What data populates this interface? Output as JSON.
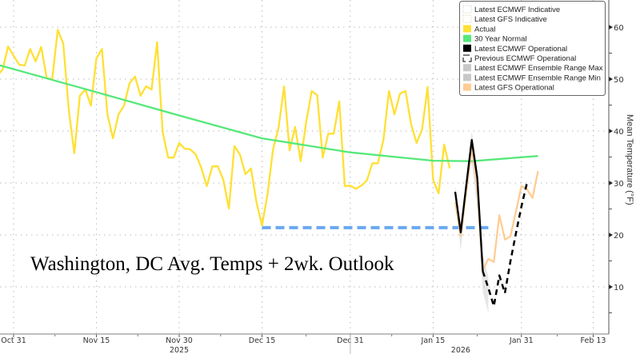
{
  "chart_data": {
    "type": "line",
    "title": "Washington, DC Avg. Temps + 2wk. Outlook",
    "xlabel": "",
    "ylabel": "Mean Temperature (°F)",
    "ylim": [
      1,
      64.5
    ],
    "xlim": [
      "2025-10-28",
      "2026-02-16"
    ],
    "grid": true,
    "legend_position": "top-right",
    "y_ticks": [
      10,
      20,
      30,
      40,
      50,
      60
    ],
    "x_ticks": [
      {
        "date": "2025-10-31",
        "label": "Oct 31"
      },
      {
        "date": "2025-11-15",
        "label": "Nov 15"
      },
      {
        "date": "2025-11-30",
        "label": "Nov 30"
      },
      {
        "date": "2025-12-15",
        "label": "Dec 15"
      },
      {
        "date": "2025-12-31",
        "label": "Dec 31"
      },
      {
        "date": "2026-01-15",
        "label": "Jan 15"
      },
      {
        "date": "2026-01-31",
        "label": "Jan 31"
      },
      {
        "date": "2026-02-13",
        "label": "Feb 13"
      }
    ],
    "year_labels": [
      {
        "date": "2025-11-30",
        "label": "2025"
      },
      {
        "date": "2026-01-20",
        "label": "2026"
      }
    ],
    "legend": [
      {
        "label": "Latest ECMWF Indicative",
        "color": "#ffffff",
        "style": "dotted-box"
      },
      {
        "label": "Latest GFS Indicative",
        "color": "#ffffff",
        "style": "dotted-box-orange"
      },
      {
        "label": "Actual",
        "color": "#ffe033",
        "style": "box"
      },
      {
        "label": "30 Year Normal",
        "color": "#55e87a",
        "style": "box"
      },
      {
        "label": "Latest ECMWF Operational",
        "color": "#000000",
        "style": "box"
      },
      {
        "label": "Previous ECMWF Operational",
        "color": "#000000",
        "style": "dashed"
      },
      {
        "label": "Latest ECMWF Ensemble Range Max",
        "color": "#c8c8c8",
        "style": "box"
      },
      {
        "label": "Latest ECMWF Ensemble Range Min",
        "color": "#c8c8c8",
        "style": "box"
      },
      {
        "label": "Latest GFS Operational",
        "color": "#ffcc94",
        "style": "box"
      }
    ],
    "series": [
      {
        "name": "Actual",
        "color": "#ffe033",
        "dash": "",
        "points": [
          [
            "2025-10-28",
            50.6
          ],
          [
            "2025-10-29",
            51.8
          ],
          [
            "2025-10-30",
            56.3
          ],
          [
            "2025-10-31",
            54.5
          ],
          [
            "2025-11-01",
            52.8
          ],
          [
            "2025-11-02",
            52.6
          ],
          [
            "2025-11-03",
            55.8
          ],
          [
            "2025-11-04",
            53.4
          ],
          [
            "2025-11-05",
            56.2
          ],
          [
            "2025-11-06",
            50.2
          ],
          [
            "2025-11-07",
            50.0
          ],
          [
            "2025-11-08",
            59.5
          ],
          [
            "2025-11-09",
            56.8
          ],
          [
            "2025-11-10",
            44.0
          ],
          [
            "2025-11-11",
            35.7
          ],
          [
            "2025-11-12",
            46.8
          ],
          [
            "2025-11-13",
            48.0
          ],
          [
            "2025-11-14",
            44.9
          ],
          [
            "2025-11-15",
            54.0
          ],
          [
            "2025-11-16",
            55.8
          ],
          [
            "2025-11-17",
            43.2
          ],
          [
            "2025-11-18",
            38.6
          ],
          [
            "2025-11-19",
            43.2
          ],
          [
            "2025-11-20",
            44.9
          ],
          [
            "2025-11-21",
            49.2
          ],
          [
            "2025-11-22",
            50.5
          ],
          [
            "2025-11-23",
            46.8
          ],
          [
            "2025-11-24",
            48.6
          ],
          [
            "2025-11-25",
            48.0
          ],
          [
            "2025-11-26",
            57.1
          ],
          [
            "2025-11-27",
            39.8
          ],
          [
            "2025-11-28",
            34.9
          ],
          [
            "2025-11-29",
            34.9
          ],
          [
            "2025-11-30",
            37.7
          ],
          [
            "2025-12-01",
            36.6
          ],
          [
            "2025-12-02",
            36.5
          ],
          [
            "2025-12-03",
            35.5
          ],
          [
            "2025-12-04",
            32.9
          ],
          [
            "2025-12-05",
            29.4
          ],
          [
            "2025-12-06",
            33.2
          ],
          [
            "2025-12-07",
            33.2
          ],
          [
            "2025-12-08",
            30.6
          ],
          [
            "2025-12-09",
            25.1
          ],
          [
            "2025-12-10",
            37.1
          ],
          [
            "2025-12-11",
            35.5
          ],
          [
            "2025-12-12",
            31.7
          ],
          [
            "2025-12-13",
            32.8
          ],
          [
            "2025-12-14",
            26.3
          ],
          [
            "2025-12-15",
            21.8
          ],
          [
            "2025-12-16",
            27.8
          ],
          [
            "2025-12-17",
            36.5
          ],
          [
            "2025-12-18",
            40.6
          ],
          [
            "2025-12-19",
            48.6
          ],
          [
            "2025-12-20",
            36.3
          ],
          [
            "2025-12-21",
            40.8
          ],
          [
            "2025-12-22",
            34.2
          ],
          [
            "2025-12-23",
            41.7
          ],
          [
            "2025-12-24",
            47.7
          ],
          [
            "2025-12-25",
            46.9
          ],
          [
            "2025-12-26",
            34.9
          ],
          [
            "2025-12-27",
            39.5
          ],
          [
            "2025-12-28",
            39.5
          ],
          [
            "2025-12-29",
            45.7
          ],
          [
            "2025-12-30",
            29.4
          ],
          [
            "2025-12-31",
            29.5
          ],
          [
            "2026-01-01",
            28.9
          ],
          [
            "2026-01-02",
            29.5
          ],
          [
            "2026-01-03",
            30.5
          ],
          [
            "2026-01-04",
            33.8
          ],
          [
            "2026-01-05",
            33.8
          ],
          [
            "2026-01-06",
            38.3
          ],
          [
            "2026-01-07",
            47.7
          ],
          [
            "2026-01-08",
            43.2
          ],
          [
            "2026-01-09",
            47.2
          ],
          [
            "2026-01-10",
            47.7
          ],
          [
            "2026-01-11",
            41.4
          ],
          [
            "2026-01-12",
            37.7
          ],
          [
            "2026-01-13",
            40.3
          ],
          [
            "2026-01-14",
            48.5
          ],
          [
            "2026-01-15",
            30.6
          ],
          [
            "2026-01-16",
            28.0
          ],
          [
            "2026-01-17",
            37.4
          ],
          [
            "2026-01-18",
            32.8
          ]
        ]
      },
      {
        "name": "30 Year Normal",
        "color": "#55e87a",
        "dash": "",
        "points": [
          [
            "2025-10-28",
            52.8
          ],
          [
            "2025-11-15",
            47.5
          ],
          [
            "2025-11-30",
            43.0
          ],
          [
            "2025-12-15",
            38.6
          ],
          [
            "2025-12-31",
            35.9
          ],
          [
            "2026-01-15",
            34.3
          ],
          [
            "2026-01-22",
            34.2
          ],
          [
            "2026-02-03",
            35.2
          ]
        ]
      },
      {
        "name": "Latest GFS Operational",
        "color": "#ffcc94",
        "dash": "",
        "points": [
          [
            "2026-01-19",
            26.3
          ],
          [
            "2026-01-20",
            19.8
          ],
          [
            "2026-01-21",
            28.5
          ],
          [
            "2026-01-22",
            37.2
          ],
          [
            "2026-01-23",
            29.0
          ],
          [
            "2026-01-24",
            13.2
          ],
          [
            "2026-01-25",
            15.4
          ],
          [
            "2026-01-26",
            14.8
          ],
          [
            "2026-01-27",
            23.8
          ],
          [
            "2026-01-28",
            19.1
          ],
          [
            "2026-01-29",
            19.7
          ],
          [
            "2026-01-30",
            24.5
          ],
          [
            "2026-01-31",
            29.4
          ],
          [
            "2026-02-01",
            28.8
          ],
          [
            "2026-02-02",
            27.1
          ],
          [
            "2026-02-03",
            32.3
          ]
        ]
      },
      {
        "name": "Latest ECMWF Operational",
        "color": "#000000",
        "dash": "",
        "points": [
          [
            "2026-01-19",
            28.3
          ],
          [
            "2026-01-20",
            20.5
          ],
          [
            "2026-01-21",
            29.5
          ],
          [
            "2026-01-22",
            38.3
          ],
          [
            "2026-01-23",
            31.0
          ],
          [
            "2026-01-24",
            13.0
          ]
        ]
      },
      {
        "name": "Previous ECMWF Operational",
        "color": "#000000",
        "dash": "7,5",
        "points": [
          [
            "2026-01-24",
            13.0
          ],
          [
            "2026-01-25",
            9.8
          ],
          [
            "2026-01-26",
            6.3
          ],
          [
            "2026-01-27",
            12.2
          ],
          [
            "2026-01-28",
            8.8
          ],
          [
            "2026-01-29",
            14.9
          ],
          [
            "2026-01-30",
            20.3
          ],
          [
            "2026-01-31",
            25.5
          ],
          [
            "2026-02-01",
            30.0
          ]
        ]
      }
    ],
    "ensemble_range": {
      "color": "#c8c8c8",
      "dates": [
        "2026-01-19",
        "2026-01-20",
        "2026-01-21",
        "2026-01-22",
        "2026-01-23",
        "2026-01-24",
        "2026-01-25"
      ],
      "max": [
        29.5,
        22.0,
        31.0,
        40.0,
        33.0,
        16.0,
        12.0
      ],
      "min": [
        27.0,
        17.0,
        27.0,
        34.0,
        25.0,
        9.0,
        5.0
      ]
    },
    "reference_line": {
      "value": 21.4,
      "from": "2025-12-15",
      "to": "2026-01-25",
      "color": "#6aa8f0"
    }
  }
}
